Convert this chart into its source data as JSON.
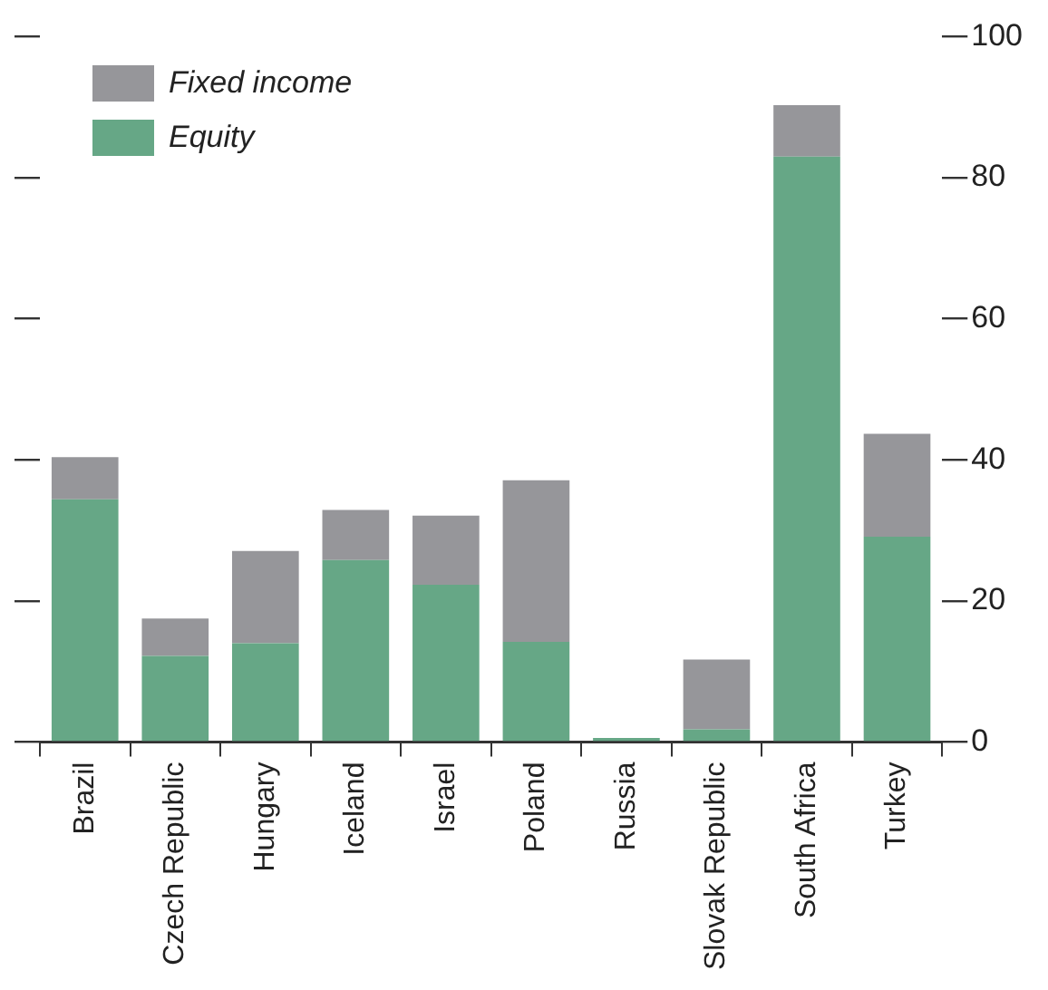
{
  "chart_data": {
    "type": "bar",
    "stacked": true,
    "categories": [
      "Brazil",
      "Czech Republic",
      "Hungary",
      "Iceland",
      "Israel",
      "Poland",
      "Russia",
      "Slovak Republic",
      "South Africa",
      "Turkey"
    ],
    "series": [
      {
        "name": "Equity",
        "color": "#66a786",
        "values": [
          34.4,
          12.2,
          14.0,
          25.8,
          22.3,
          14.2,
          0.6,
          1.8,
          83.0,
          29.1
        ]
      },
      {
        "name": "Fixed income",
        "color": "#96969a",
        "values": [
          6.0,
          5.3,
          13.1,
          7.1,
          9.8,
          22.9,
          0.0,
          9.9,
          7.3,
          14.6
        ]
      }
    ],
    "ylim": [
      0,
      100
    ],
    "yticks": [
      0,
      20,
      40,
      60,
      80,
      100
    ],
    "grid": false,
    "legend": "top left"
  }
}
